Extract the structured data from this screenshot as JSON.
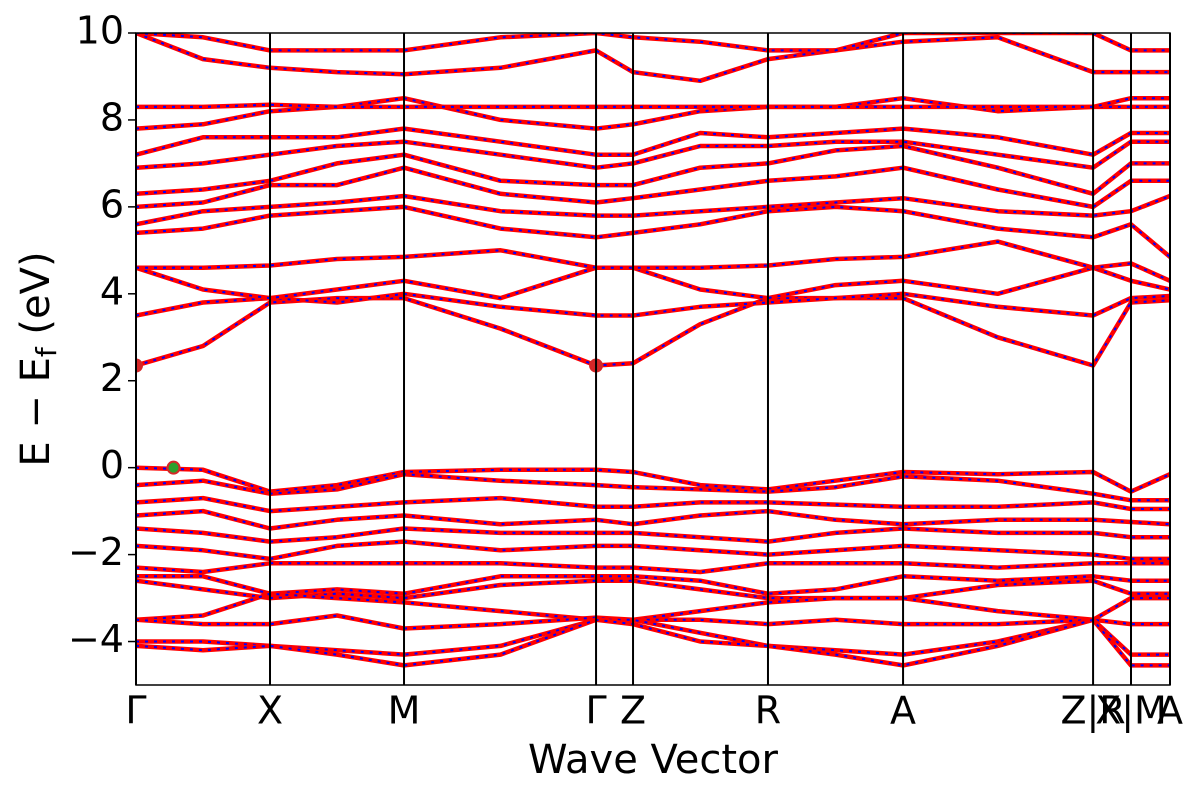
{
  "chart_data": {
    "type": "line",
    "xlabel": "Wave Vector",
    "ylabel": [
      "E − E",
      "f",
      " (eV)"
    ],
    "xlim": [
      0,
      7.716
    ],
    "xticks": [
      {
        "value": 0,
        "label": "Γ"
      },
      {
        "value": 1.0,
        "label": "X"
      },
      {
        "value": 2.0,
        "label": "M"
      },
      {
        "value": 3.433,
        "label": "Γ"
      },
      {
        "value": 3.709,
        "label": "Z"
      },
      {
        "value": 4.716,
        "label": "R"
      },
      {
        "value": 5.724,
        "label": "A"
      },
      {
        "value": 7.142,
        "label": "Z|R"
      },
      {
        "value": 7.425,
        "label": "X|M"
      },
      {
        "value": 7.716,
        "label": "A"
      }
    ],
    "ylim": [
      -5,
      10
    ],
    "yticks": [
      {
        "value": -4,
        "label": "−4"
      },
      {
        "value": -2,
        "label": "−2"
      },
      0,
      2,
      4,
      6,
      8,
      10
    ],
    "color": "#ff0000",
    "dash_color": "#0000ff",
    "x": [
      0,
      0.5,
      1.0,
      1.5,
      2.0,
      2.72,
      3.433,
      3.709,
      4.21,
      4.716,
      5.22,
      5.724,
      6.43,
      7.142,
      7.425,
      7.716
    ],
    "series": [
      {
        "values": [
          0,
          -0.05,
          -0.55,
          -0.4,
          -0.1,
          -0.05,
          -0.05,
          -0.1,
          -0.4,
          -0.5,
          -0.3,
          -0.1,
          -0.15,
          -0.1,
          -0.55,
          -0.15
        ]
      },
      {
        "values": [
          -0.4,
          -0.3,
          -0.6,
          -0.5,
          -0.15,
          -0.3,
          -0.4,
          -0.45,
          -0.5,
          -0.55,
          -0.45,
          -0.2,
          -0.3,
          -0.6,
          -0.75,
          -0.75
        ]
      },
      {
        "values": [
          -0.8,
          -0.7,
          -1.0,
          -0.9,
          -0.8,
          -0.7,
          -0.9,
          -0.9,
          -0.8,
          -0.8,
          -0.85,
          -0.9,
          -0.9,
          -0.8,
          -0.95,
          -0.95
        ]
      },
      {
        "values": [
          -1.1,
          -1.0,
          -1.4,
          -1.2,
          -1.1,
          -1.3,
          -1.2,
          -1.3,
          -1.1,
          -1.0,
          -1.2,
          -1.3,
          -1.2,
          -1.2,
          -1.25,
          -1.3
        ]
      },
      {
        "values": [
          -1.4,
          -1.5,
          -1.7,
          -1.6,
          -1.4,
          -1.5,
          -1.5,
          -1.5,
          -1.6,
          -1.7,
          -1.5,
          -1.4,
          -1.5,
          -1.5,
          -1.6,
          -1.6
        ]
      },
      {
        "values": [
          -1.8,
          -1.9,
          -2.1,
          -1.8,
          -1.7,
          -1.9,
          -1.8,
          -1.8,
          -1.9,
          -2.0,
          -1.9,
          -1.8,
          -1.9,
          -2.0,
          -2.1,
          -2.1
        ]
      },
      {
        "values": [
          -2.3,
          -2.4,
          -2.2,
          -2.2,
          -2.2,
          -2.2,
          -2.3,
          -2.3,
          -2.4,
          -2.2,
          -2.2,
          -2.2,
          -2.3,
          -2.2,
          -2.2,
          -2.2
        ]
      },
      {
        "values": [
          -2.5,
          -2.5,
          -2.9,
          -2.8,
          -2.9,
          -2.5,
          -2.5,
          -2.5,
          -2.6,
          -2.9,
          -2.8,
          -2.5,
          -2.6,
          -2.5,
          -2.6,
          -2.6
        ]
      },
      {
        "values": [
          -2.6,
          -2.8,
          -3.0,
          -2.9,
          -3.0,
          -2.7,
          -2.6,
          -2.6,
          -2.8,
          -3.0,
          -3.0,
          -3.0,
          -2.7,
          -2.6,
          -2.9,
          -2.9
        ]
      },
      {
        "values": [
          -3.5,
          -3.4,
          -2.9,
          -3.0,
          -3.1,
          -3.3,
          -3.5,
          -3.5,
          -3.3,
          -3.1,
          -3.0,
          -3.0,
          -3.3,
          -3.5,
          -3.0,
          -3.0
        ]
      },
      {
        "values": [
          -3.5,
          -3.6,
          -3.6,
          -3.4,
          -3.7,
          -3.6,
          -3.45,
          -3.5,
          -3.5,
          -3.6,
          -3.5,
          -3.6,
          -3.6,
          -3.5,
          -3.6,
          -3.6
        ]
      },
      {
        "values": [
          -4.0,
          -4.0,
          -4.1,
          -4.2,
          -4.3,
          -4.1,
          -3.5,
          -3.5,
          -3.8,
          -4.1,
          -4.2,
          -4.3,
          -4.0,
          -3.5,
          -4.3,
          -4.3
        ]
      },
      {
        "values": [
          -4.1,
          -4.2,
          -4.1,
          -4.3,
          -4.55,
          -4.3,
          -3.5,
          -3.6,
          -4.0,
          -4.1,
          -4.3,
          -4.55,
          -4.1,
          -3.5,
          -4.55,
          -4.55
        ]
      },
      {
        "values": [
          2.35,
          2.8,
          3.8,
          3.9,
          3.9,
          3.2,
          2.35,
          2.4,
          3.3,
          3.9,
          3.9,
          3.9,
          3.0,
          2.35,
          3.8,
          3.85
        ]
      },
      {
        "values": [
          3.5,
          3.8,
          3.9,
          3.8,
          4.0,
          3.7,
          3.5,
          3.5,
          3.7,
          3.8,
          3.9,
          4.0,
          3.7,
          3.5,
          3.9,
          3.95
        ]
      },
      {
        "values": [
          4.6,
          4.1,
          3.9,
          4.1,
          4.3,
          3.9,
          4.6,
          4.6,
          4.1,
          3.9,
          4.2,
          4.3,
          4.0,
          4.6,
          4.3,
          4.1
        ]
      },
      {
        "values": [
          4.6,
          4.6,
          4.65,
          4.8,
          4.85,
          5.0,
          4.6,
          4.6,
          4.6,
          4.65,
          4.8,
          4.85,
          5.2,
          4.6,
          4.7,
          4.3
        ]
      },
      {
        "values": [
          5.4,
          5.5,
          5.8,
          5.9,
          6.0,
          5.5,
          5.3,
          5.4,
          5.6,
          5.9,
          6.0,
          5.9,
          5.5,
          5.3,
          5.6,
          4.85
        ]
      },
      {
        "values": [
          5.6,
          5.9,
          6.0,
          6.1,
          6.25,
          5.9,
          5.8,
          5.8,
          5.9,
          6.0,
          6.1,
          6.2,
          5.9,
          5.8,
          5.9,
          6.25
        ]
      },
      {
        "values": [
          6.0,
          6.1,
          6.5,
          6.5,
          6.9,
          6.3,
          6.1,
          6.2,
          6.4,
          6.6,
          6.7,
          6.9,
          6.4,
          6.0,
          6.6,
          6.6
        ]
      },
      {
        "values": [
          6.3,
          6.4,
          6.6,
          7.0,
          7.2,
          6.6,
          6.5,
          6.5,
          6.9,
          7.0,
          7.3,
          7.4,
          6.9,
          6.3,
          7.0,
          7.0
        ]
      },
      {
        "values": [
          6.9,
          7.0,
          7.2,
          7.4,
          7.5,
          7.2,
          6.9,
          7.0,
          7.4,
          7.4,
          7.5,
          7.5,
          7.2,
          6.9,
          7.5,
          7.5
        ]
      },
      {
        "values": [
          7.2,
          7.6,
          7.6,
          7.6,
          7.8,
          7.5,
          7.2,
          7.2,
          7.7,
          7.6,
          7.7,
          7.8,
          7.6,
          7.2,
          7.7,
          7.7
        ]
      },
      {
        "values": [
          7.8,
          7.9,
          8.2,
          8.3,
          8.5,
          8.0,
          7.8,
          7.9,
          8.2,
          8.3,
          8.3,
          8.5,
          8.2,
          8.3,
          8.3,
          8.3
        ]
      },
      {
        "values": [
          8.3,
          8.3,
          8.35,
          8.3,
          8.3,
          8.3,
          8.3,
          8.3,
          8.3,
          8.3,
          8.3,
          8.3,
          8.3,
          8.3,
          8.5,
          8.5
        ]
      },
      {
        "values": [
          10.0,
          9.4,
          9.2,
          9.1,
          9.05,
          9.2,
          9.6,
          9.1,
          8.9,
          9.4,
          9.6,
          9.8,
          9.9,
          9.1,
          9.1,
          9.1
        ]
      },
      {
        "values": [
          10.0,
          9.9,
          9.6,
          9.6,
          9.6,
          9.9,
          10.0,
          9.9,
          9.8,
          9.6,
          9.6,
          10.0,
          10.0,
          10.0,
          9.6,
          9.6
        ]
      }
    ],
    "markers": [
      {
        "x": 0,
        "y": 2.35,
        "color": "#d62728"
      },
      {
        "x": 3.433,
        "y": 2.35,
        "color": "#d62728"
      },
      {
        "x": 0.28,
        "y": 0,
        "color": "#2ca02c"
      }
    ]
  }
}
